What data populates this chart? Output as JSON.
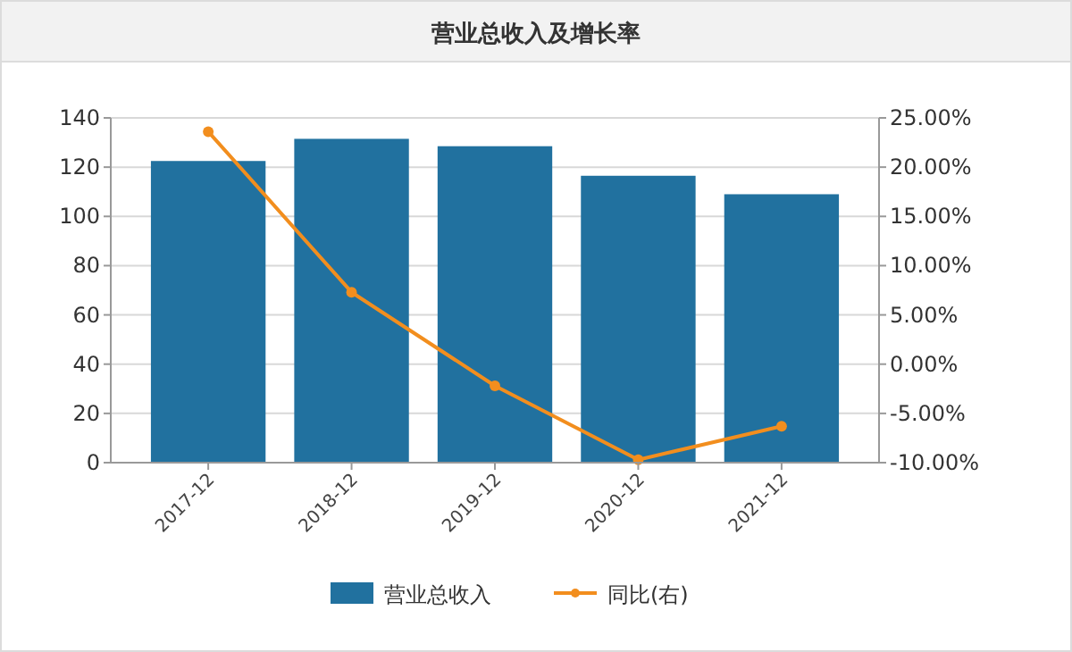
{
  "chart_data": {
    "type": "bar",
    "title": "营业总收入及增长率",
    "categories": [
      "2017-12",
      "2018-12",
      "2019-12",
      "2020-12",
      "2021-12"
    ],
    "series": [
      {
        "name": "营业总收入",
        "color": "#21719f",
        "values": [
          122.5,
          131.5,
          128.5,
          116.5,
          109
        ]
      },
      {
        "name": "同比(右)",
        "type": "line",
        "axis": "y2",
        "color": "#f28e1e",
        "values": [
          23.6,
          7.3,
          -2.2,
          -9.7,
          -6.3
        ]
      }
    ],
    "ylim": [
      0,
      140
    ],
    "yticks": [
      0,
      20,
      40,
      60,
      80,
      100,
      120,
      140
    ],
    "y2lim": [
      -10,
      25
    ],
    "y2ticks": [
      {
        "value": -10,
        "label": "-10.00%"
      },
      {
        "value": -5,
        "label": "-5.00%"
      },
      {
        "value": 0,
        "label": "0.00%"
      },
      {
        "value": 5,
        "label": "5.00%"
      },
      {
        "value": 10,
        "label": "10.00%"
      },
      {
        "value": 15,
        "label": "15.00%"
      },
      {
        "value": 20,
        "label": "20.00%"
      },
      {
        "value": 25,
        "label": "25.00%"
      }
    ],
    "grid": "y",
    "legend": "bottom",
    "marker": "circle"
  }
}
